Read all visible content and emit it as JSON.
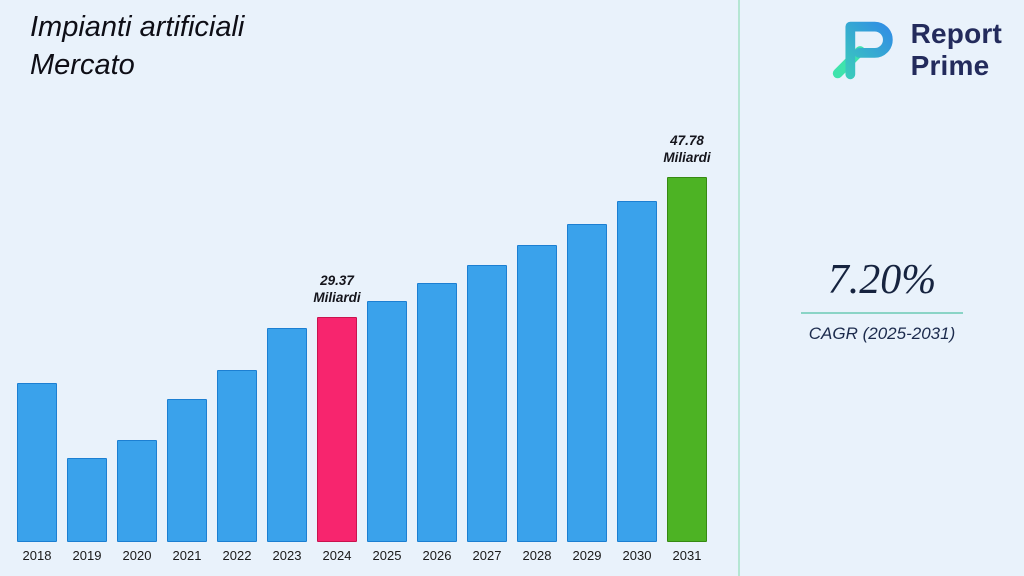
{
  "title": {
    "line1": "Impianti artificiali",
    "line2": "Mercato"
  },
  "logo": {
    "line1": "Report",
    "line2": "Prime"
  },
  "stat": {
    "value": "7.20%",
    "label": "CAGR (2025-2031)"
  },
  "colors": {
    "background": "#e9f2fb",
    "separator": "#b5e6d3",
    "underline": "#8ad4c6",
    "bar_blue": "#3aa2eb",
    "bar_blue_border": "#1c7fd2",
    "highlight_pink": "#f7256e",
    "highlight_pink_border": "#c9134f",
    "highlight_green": "#4db324",
    "highlight_green_border": "#368a12",
    "logo_navy": "#232b5c",
    "logo_gradient_start": "#3fe3ac",
    "logo_gradient_end": "#2e7cf0"
  },
  "chart_data": {
    "type": "bar",
    "title": "Impianti artificiali Mercato",
    "unit": "Miliardi",
    "categories": [
      "2018",
      "2019",
      "2020",
      "2021",
      "2022",
      "2023",
      "2024",
      "2025",
      "2026",
      "2027",
      "2028",
      "2029",
      "2030",
      "2031"
    ],
    "values": [
      20.6,
      10.8,
      13.2,
      18.6,
      22.4,
      27.9,
      29.37,
      31.48,
      33.75,
      36.18,
      38.79,
      41.58,
      44.58,
      47.78
    ],
    "ylim": [
      0,
      50
    ],
    "grid": false,
    "legend": "none",
    "bar_color": "#3aa2eb",
    "bar_border": "#1c7fd2",
    "highlights": [
      {
        "index": 6,
        "color": "#f7256e",
        "border": "#c9134f",
        "value": "29.37",
        "unit": "Miliardi"
      },
      {
        "index": 13,
        "color": "#4db324",
        "border": "#368a12",
        "value": "47.78",
        "unit": "Miliardi"
      }
    ]
  }
}
